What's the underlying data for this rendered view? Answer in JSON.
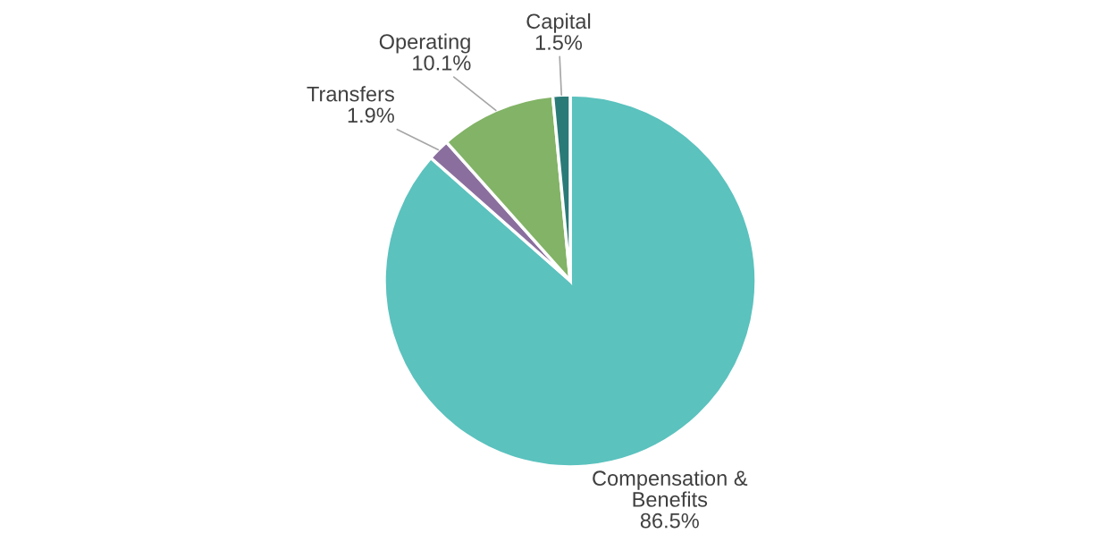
{
  "chart_data": {
    "type": "pie",
    "categories": [
      "Compensation & Benefits",
      "Transfers",
      "Operating",
      "Capital"
    ],
    "values": [
      86.5,
      1.9,
      10.1,
      1.5
    ],
    "value_labels": [
      "86.5%",
      "1.9%",
      "10.1%",
      "1.5%"
    ],
    "colors": [
      "#5bc2be",
      "#8a6f9e",
      "#82b366",
      "#2a7a78"
    ]
  }
}
